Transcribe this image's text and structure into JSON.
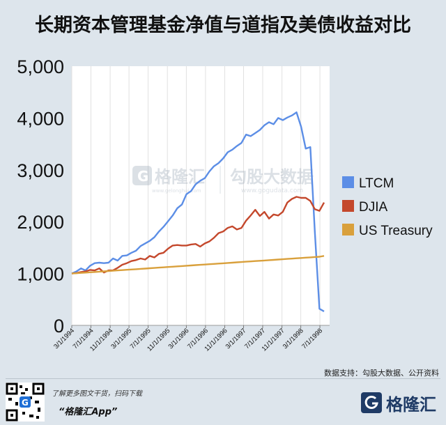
{
  "header": {
    "title": "长期资本管理基金净值与道指及美债收益对比"
  },
  "chart_data": {
    "type": "line",
    "title": "长期资本管理基金净值与道指及美债收益对比",
    "xlabel": "",
    "ylabel": "",
    "ylim": [
      0,
      5000
    ],
    "y_ticks": [
      "0",
      "1,000",
      "2,000",
      "3,000",
      "4,000",
      "5,000"
    ],
    "x_ticks": [
      "3/1/1994",
      "7/1/1994",
      "11/1/1994",
      "3/1/1995",
      "7/1/1995",
      "11/1/1995",
      "3/1/1996",
      "7/1/1996",
      "11/1/1996",
      "3/1/1997",
      "7/1/1997",
      "11/1/1997",
      "3/1/1998",
      "7/1/1998"
    ],
    "x_start": "3/1/1994",
    "x_end": "9/1/1998",
    "grid": "vertical",
    "legend_position": "right",
    "series": [
      {
        "name": "LTCM",
        "color": "#5c8ee6",
        "values": [
          1000,
          1040,
          1100,
          1060,
          1150,
          1200,
          1210,
          1200,
          1210,
          1290,
          1250,
          1340,
          1350,
          1400,
          1440,
          1530,
          1580,
          1630,
          1700,
          1810,
          1900,
          2010,
          2120,
          2260,
          2330,
          2530,
          2590,
          2720,
          2790,
          2840,
          2970,
          3070,
          3130,
          3220,
          3340,
          3390,
          3460,
          3520,
          3680,
          3650,
          3710,
          3770,
          3860,
          3920,
          3880,
          4000,
          3960,
          4010,
          4050,
          4110,
          3830,
          3410,
          3440,
          1800,
          320,
          270
        ]
      },
      {
        "name": "DJIA",
        "color": "#c4482c",
        "values": [
          1000,
          1010,
          1030,
          1040,
          1070,
          1060,
          1100,
          1020,
          1060,
          1060,
          1110,
          1170,
          1200,
          1240,
          1260,
          1290,
          1270,
          1340,
          1310,
          1380,
          1400,
          1480,
          1540,
          1550,
          1540,
          1540,
          1560,
          1570,
          1520,
          1580,
          1620,
          1690,
          1780,
          1810,
          1880,
          1910,
          1850,
          1880,
          2020,
          2120,
          2230,
          2110,
          2190,
          2060,
          2140,
          2120,
          2190,
          2370,
          2440,
          2480,
          2460,
          2460,
          2400,
          2240,
          2210,
          2370
        ]
      },
      {
        "name": "US Treasury",
        "color": "#d9a03c",
        "values": [
          1000,
          1006,
          1012,
          1018,
          1024,
          1030,
          1036,
          1042,
          1048,
          1054,
          1060,
          1066,
          1072,
          1078,
          1084,
          1090,
          1096,
          1102,
          1108,
          1114,
          1120,
          1126,
          1132,
          1138,
          1144,
          1150,
          1156,
          1162,
          1168,
          1174,
          1180,
          1186,
          1192,
          1198,
          1204,
          1210,
          1216,
          1222,
          1228,
          1234,
          1240,
          1246,
          1252,
          1258,
          1264,
          1270,
          1276,
          1282,
          1288,
          1294,
          1300,
          1306,
          1312,
          1318,
          1324,
          1340
        ]
      }
    ]
  },
  "watermark": {
    "brand_cn": "格隆汇",
    "brand_domain": "www.gelonghui.com",
    "data_cn": "勾股大数据",
    "data_domain": "www.gogudata.com"
  },
  "source": {
    "text": "数据支持：勾股大数据、公开资料"
  },
  "footer": {
    "note": "了解更多图文干货，扫码下载",
    "app": "“格隆汇App”",
    "logo_text": "格隆汇",
    "logo_mark_icon": "g-logo-icon",
    "qr_icon": "qr-code-icon"
  },
  "colors": {
    "background": "#dde5ec",
    "plot_background": "#ffffff",
    "ltcm": "#5c8ee6",
    "djia": "#c4482c",
    "treasury": "#d9a03c",
    "brand": "#1f3b66"
  }
}
